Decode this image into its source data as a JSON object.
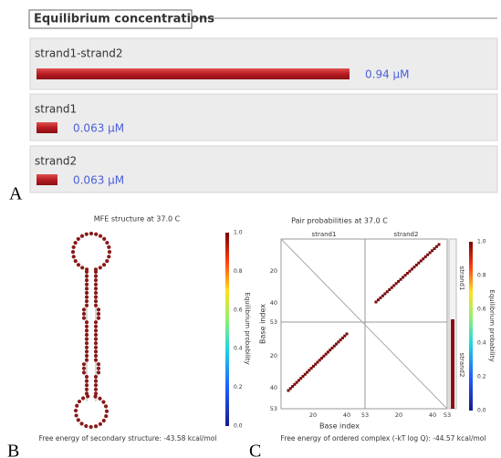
{
  "panel_labels": [
    "A",
    "B",
    "C"
  ],
  "chart_data": {
    "type": "bar",
    "orientation": "horizontal",
    "title": "Equilibrium concentrations",
    "categories": [
      "strand1-strand2",
      "strand1",
      "strand2"
    ],
    "values": [
      0.94,
      0.063,
      0.063
    ],
    "value_labels": [
      "0.94 μM",
      "0.063 μM",
      "0.063 μM"
    ],
    "color": "#b81c22"
  },
  "mfe_plot": {
    "title": "MFE structure at 37.0 C",
    "colorbar_label": "Equilibrium probability",
    "colorbar_ticks": [
      "1.0",
      "0.8",
      "0.6",
      "0.4",
      "0.2",
      "0.0"
    ],
    "footer": "Free energy of secondary structure: -43.58 kcal/mol"
  },
  "pair_plot": {
    "title": "Pair probabilities at 37.0 C",
    "strands": [
      "strand1",
      "strand2"
    ],
    "ticks": [
      "20",
      "40",
      "53"
    ],
    "x_label": "Base index",
    "y_label": "Base index",
    "colorbar_label": "Equilibrium probability",
    "colorbar_ticks": [
      "1.0",
      "0.8",
      "0.6",
      "0.4",
      "0.2",
      "0.0"
    ],
    "footer": "Free energy of ordered complex (-kT log Q): -44.57 kcal/mol"
  }
}
